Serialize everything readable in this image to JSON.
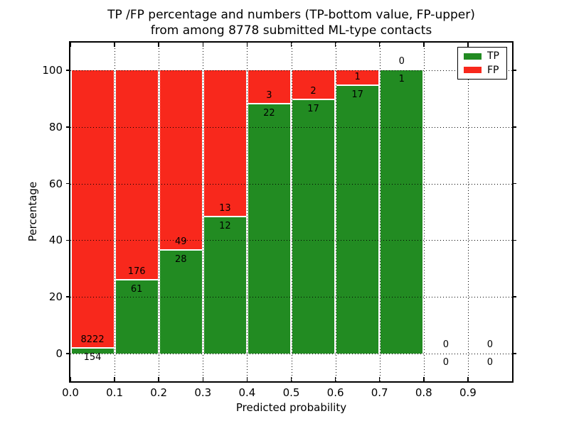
{
  "title": {
    "line1": "TP /FP percentage and numbers (TP-bottom value, FP-upper)",
    "line2": "from among 8778 submitted ML-type contacts"
  },
  "axes": {
    "xlabel": "Predicted probability",
    "ylabel": "Percentage"
  },
  "legend": {
    "items": [
      {
        "label": "TP",
        "color_key": "tp"
      },
      {
        "label": "FP",
        "color_key": "fp"
      }
    ]
  },
  "colors": {
    "tp": "#228b22",
    "fp": "#f8281c"
  },
  "chart_data": {
    "type": "bar",
    "stacked": true,
    "title": "TP /FP percentage and numbers (TP-bottom value, FP-upper) from among 8778 submitted ML-type contacts",
    "xlabel": "Predicted probability",
    "ylabel": "Percentage",
    "xlim": [
      0.0,
      1.0
    ],
    "ylim": [
      -10,
      110
    ],
    "grid": true,
    "legend_position": "upper right",
    "xticks": [
      "0.0",
      "0.1",
      "0.2",
      "0.3",
      "0.4",
      "0.5",
      "0.6",
      "0.7",
      "0.8",
      "0.9"
    ],
    "yticks": [
      0,
      20,
      40,
      60,
      80,
      100
    ],
    "series": [
      {
        "name": "TP",
        "color_key": "tp",
        "position": "bottom"
      },
      {
        "name": "FP",
        "color_key": "fp",
        "position": "top"
      }
    ],
    "bins": [
      {
        "x0": 0.0,
        "x1": 0.1,
        "tp": 154,
        "fp": 8222,
        "tp_pct": 1.84
      },
      {
        "x0": 0.1,
        "x1": 0.2,
        "tp": 61,
        "fp": 176,
        "tp_pct": 25.74
      },
      {
        "x0": 0.2,
        "x1": 0.3,
        "tp": 28,
        "fp": 49,
        "tp_pct": 36.36
      },
      {
        "x0": 0.3,
        "x1": 0.4,
        "tp": 12,
        "fp": 13,
        "tp_pct": 48.0
      },
      {
        "x0": 0.4,
        "x1": 0.5,
        "tp": 22,
        "fp": 3,
        "tp_pct": 88.0
      },
      {
        "x0": 0.5,
        "x1": 0.6,
        "tp": 17,
        "fp": 2,
        "tp_pct": 89.47
      },
      {
        "x0": 0.6,
        "x1": 0.7,
        "tp": 17,
        "fp": 1,
        "tp_pct": 94.44
      },
      {
        "x0": 0.7,
        "x1": 0.8,
        "tp": 1,
        "fp": 0,
        "tp_pct": 100.0
      },
      {
        "x0": 0.8,
        "x1": 0.9,
        "tp": 0,
        "fp": 0,
        "tp_pct": null
      },
      {
        "x0": 0.9,
        "x1": 1.0,
        "tp": 0,
        "fp": 0,
        "tp_pct": null
      }
    ]
  }
}
